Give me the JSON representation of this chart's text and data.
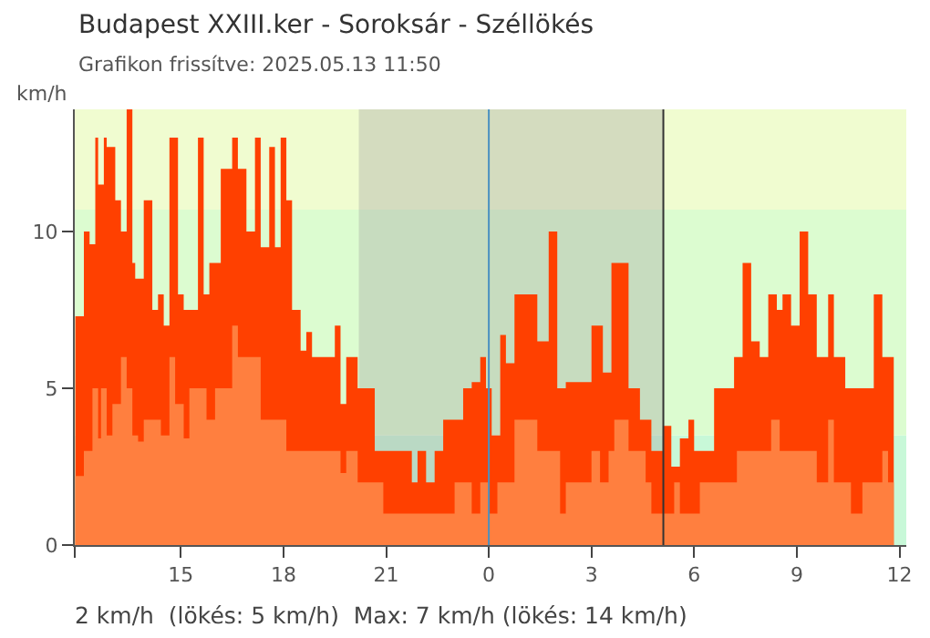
{
  "chart_data": {
    "type": "area",
    "title": "Budapest XXIII.ker - Soroksár - Széllökés",
    "subtitle": "Grafikon frissítve: 2025.05.13 11:50",
    "ylabel": "km/h",
    "annotations": [
      "2 km/h  (lökés: 5 km/h)  Max: 7 km/h (lökés: 14 km/h)"
    ],
    "series": [
      {
        "color": "#ff4000",
        "x": [
          "2025-05-12T11:55",
          "2025-05-12T12:10",
          "2025-05-12T12:20",
          "2025-05-12T12:30",
          "2025-05-12T12:35",
          "2025-05-12T12:45",
          "2025-05-12T12:50",
          "2025-05-12T13:05",
          "2025-05-12T13:15",
          "2025-05-12T13:25",
          "2025-05-12T13:35",
          "2025-05-12T13:40",
          "2025-05-12T13:55",
          "2025-05-12T14:10",
          "2025-05-12T14:20",
          "2025-05-12T14:30",
          "2025-05-12T14:40",
          "2025-05-12T14:55",
          "2025-05-12T15:05",
          "2025-05-12T15:30",
          "2025-05-12T15:40",
          "2025-05-12T15:50",
          "2025-05-12T16:10",
          "2025-05-12T16:30",
          "2025-05-12T16:40",
          "2025-05-12T16:55",
          "2025-05-12T17:10",
          "2025-05-12T17:20",
          "2025-05-12T17:35",
          "2025-05-12T17:45",
          "2025-05-12T17:55",
          "2025-05-12T18:05",
          "2025-05-12T18:15",
          "2025-05-12T18:30",
          "2025-05-12T18:40",
          "2025-05-12T18:50",
          "2025-05-12T19:20",
          "2025-05-12T19:30",
          "2025-05-12T19:40",
          "2025-05-12T19:50",
          "2025-05-12T20:00",
          "2025-05-12T20:10",
          "2025-05-12T20:40",
          "2025-05-12T21:30",
          "2025-05-12T21:45",
          "2025-05-12T21:55",
          "2025-05-12T22:10",
          "2025-05-12T22:25",
          "2025-05-12T22:40",
          "2025-05-12T22:45",
          "2025-05-12T23:15",
          "2025-05-12T23:30",
          "2025-05-12T23:45",
          "2025-05-12T23:55",
          "2025-05-13T00:05",
          "2025-05-13T00:20",
          "2025-05-13T00:30",
          "2025-05-13T00:45",
          "2025-05-13T01:10",
          "2025-05-13T01:25",
          "2025-05-13T01:45",
          "2025-05-13T02:00",
          "2025-05-13T02:15",
          "2025-05-13T02:40",
          "2025-05-13T03:00",
          "2025-05-13T03:20",
          "2025-05-13T03:35",
          "2025-05-13T04:05",
          "2025-05-13T04:25",
          "2025-05-13T04:45",
          "2025-05-13T05:05",
          "2025-05-13T05:20",
          "2025-05-13T05:35",
          "2025-05-13T05:50",
          "2025-05-13T06:00",
          "2025-05-13T06:20",
          "2025-05-13T06:35",
          "2025-05-13T06:55",
          "2025-05-13T07:10",
          "2025-05-13T07:25",
          "2025-05-13T07:40",
          "2025-05-13T07:55",
          "2025-05-13T08:10",
          "2025-05-13T08:25",
          "2025-05-13T08:35",
          "2025-05-13T08:50",
          "2025-05-13T09:05",
          "2025-05-13T09:20",
          "2025-05-13T09:35",
          "2025-05-13T09:55",
          "2025-05-13T10:05",
          "2025-05-13T10:25",
          "2025-05-13T10:55",
          "2025-05-13T11:15",
          "2025-05-13T11:30",
          "2025-05-13T11:50"
        ],
        "values": [
          7.3,
          10,
          9.6,
          13,
          11.5,
          13,
          12.7,
          11,
          10,
          13.9,
          9,
          8.5,
          11,
          7.5,
          8,
          7,
          13,
          8,
          7.5,
          13,
          8,
          9,
          12,
          13,
          12,
          10,
          13,
          9.5,
          12.7,
          9.5,
          13,
          11,
          7.5,
          6.2,
          6.8,
          6,
          6,
          7,
          4.5,
          6,
          6,
          5,
          3,
          3,
          2,
          3,
          2,
          3,
          4,
          4,
          5,
          5.2,
          6,
          5,
          3.5,
          6.7,
          5.8,
          8,
          8,
          6.5,
          10,
          5,
          5.2,
          5.2,
          7,
          5.5,
          9,
          5,
          4,
          3,
          3.8,
          2.5,
          3.4,
          4,
          3,
          3,
          5,
          5,
          6,
          9,
          6.5,
          6,
          8,
          7.5,
          8,
          7,
          10,
          8,
          6,
          8,
          6,
          5,
          5,
          8,
          6,
          5
        ]
      },
      {
        "color": "#ff7f3f",
        "x": [
          "2025-05-12T11:55",
          "2025-05-12T12:10",
          "2025-05-12T12:25",
          "2025-05-12T12:35",
          "2025-05-12T12:40",
          "2025-05-12T12:50",
          "2025-05-12T13:00",
          "2025-05-12T13:15",
          "2025-05-12T13:25",
          "2025-05-12T13:35",
          "2025-05-12T13:45",
          "2025-05-12T13:55",
          "2025-05-12T14:25",
          "2025-05-12T14:40",
          "2025-05-12T14:50",
          "2025-05-12T15:05",
          "2025-05-12T15:15",
          "2025-05-12T15:30",
          "2025-05-12T15:45",
          "2025-05-12T16:00",
          "2025-05-12T16:30",
          "2025-05-12T16:40",
          "2025-05-12T17:10",
          "2025-05-12T17:20",
          "2025-05-12T17:50",
          "2025-05-12T18:05",
          "2025-05-12T19:30",
          "2025-05-12T19:40",
          "2025-05-12T19:50",
          "2025-05-12T20:10",
          "2025-05-12T20:30",
          "2025-05-12T20:55",
          "2025-05-12T22:35",
          "2025-05-12T22:45",
          "2025-05-12T23:00",
          "2025-05-12T23:30",
          "2025-05-12T23:45",
          "2025-05-13T00:00",
          "2025-05-13T00:15",
          "2025-05-13T00:45",
          "2025-05-13T01:00",
          "2025-05-13T01:25",
          "2025-05-13T01:45",
          "2025-05-13T02:05",
          "2025-05-13T02:15",
          "2025-05-13T02:45",
          "2025-05-13T03:00",
          "2025-05-13T03:15",
          "2025-05-13T03:30",
          "2025-05-13T03:40",
          "2025-05-13T04:05",
          "2025-05-13T04:35",
          "2025-05-13T04:45",
          "2025-05-13T05:00",
          "2025-05-13T05:25",
          "2025-05-13T05:35",
          "2025-05-13T06:00",
          "2025-05-13T06:10",
          "2025-05-13T07:05",
          "2025-05-13T07:15",
          "2025-05-13T07:45",
          "2025-05-13T08:05",
          "2025-05-13T08:15",
          "2025-05-13T08:30",
          "2025-05-13T09:20",
          "2025-05-13T09:35",
          "2025-05-13T09:55",
          "2025-05-13T10:05",
          "2025-05-13T10:35",
          "2025-05-13T10:55",
          "2025-05-13T11:05",
          "2025-05-13T11:30",
          "2025-05-13T11:40",
          "2025-05-13T11:50"
        ],
        "values": [
          2.2,
          3,
          5,
          3.4,
          5,
          3.5,
          4.5,
          6,
          5,
          3.5,
          3.3,
          4,
          3.5,
          6,
          4.5,
          3.4,
          5,
          5,
          4,
          5,
          7,
          6,
          6,
          4,
          4,
          3,
          3,
          2.3,
          3,
          2,
          2,
          1,
          1,
          1,
          2,
          1,
          2,
          1,
          2,
          4,
          4,
          3,
          3,
          1,
          2,
          2,
          3,
          2,
          3,
          4,
          3,
          2,
          1,
          1,
          2,
          1,
          1,
          2,
          2,
          3,
          3,
          3,
          4,
          3,
          3,
          2,
          4,
          2,
          1,
          2,
          2,
          3,
          2,
          2
        ]
      }
    ],
    "xlim": [
      "2025-05-12T11:54",
      "2025-05-13T12:12"
    ],
    "xticks": [
      {
        "value": "2025-05-12T11:54",
        "label": null
      },
      {
        "value": "2025-05-12T15:00",
        "label": "15"
      },
      {
        "value": "2025-05-12T18:00",
        "label": "18"
      },
      {
        "value": "2025-05-12T21:00",
        "label": "21"
      },
      {
        "value": "2025-05-13T00:00",
        "label": "0"
      },
      {
        "value": "2025-05-13T03:00",
        "label": "3"
      },
      {
        "value": "2025-05-13T06:00",
        "label": "6"
      },
      {
        "value": "2025-05-13T09:00",
        "label": "9"
      },
      {
        "value": "2025-05-13T12:00",
        "label": "12"
      }
    ],
    "ylim": [
      0,
      13.9
    ],
    "yticks": [
      0,
      5,
      10
    ],
    "bands": [
      {
        "axis": "y",
        "from": 0,
        "to": 3.5,
        "color": "#c8f8d8"
      },
      {
        "axis": "y",
        "from": 3.5,
        "to": 10.7,
        "color": "#dcfcd0"
      },
      {
        "axis": "y",
        "from": 10.7,
        "to": 13.9,
        "color": "#f0fcd0"
      },
      {
        "axis": "x",
        "from": "2025-05-12T20:12",
        "to": "2025-05-13T05:06",
        "color": "#a0a0a0"
      }
    ],
    "ref_lines": [
      {
        "axis": "x",
        "value": "2025-05-13T00:00",
        "color": "#4a90c0"
      },
      {
        "axis": "x",
        "value": "2025-05-13T05:06",
        "color": "#333333"
      }
    ]
  }
}
